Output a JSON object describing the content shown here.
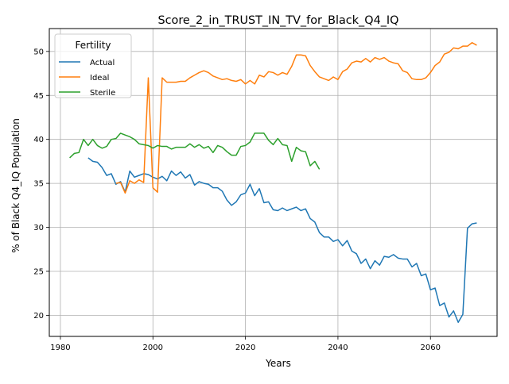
{
  "chart_data": {
    "type": "line",
    "title": "Score_2_in_TRUST_IN_TV_for_Black_Q4_IQ",
    "xlabel": "Years",
    "ylabel": "% of Black Q4_IQ Population",
    "xlim": [
      1977.6,
      2074.4
    ],
    "ylim": [
      17.6,
      52.6
    ],
    "xticks": [
      1980,
      2000,
      2020,
      2040,
      2060
    ],
    "yticks": [
      20,
      25,
      30,
      35,
      40,
      45,
      50
    ],
    "grid": true,
    "legend": {
      "title": "Fertility",
      "position": "upper-left"
    },
    "series": [
      {
        "name": "Actual",
        "color": "#1f77b4",
        "points": [
          [
            1986,
            37.9
          ],
          [
            1987,
            37.5
          ],
          [
            1988,
            37.4
          ],
          [
            1989,
            36.8
          ],
          [
            1990,
            35.9
          ],
          [
            1991,
            36.1
          ],
          [
            1992,
            34.9
          ],
          [
            1993,
            35.2
          ],
          [
            1994,
            34.0
          ],
          [
            1995,
            36.4
          ],
          [
            1996,
            35.7
          ],
          [
            1997,
            35.9
          ],
          [
            1998,
            36.1
          ],
          [
            1999,
            36.0
          ],
          [
            2000,
            35.7
          ],
          [
            2001,
            35.5
          ],
          [
            2002,
            35.8
          ],
          [
            2003,
            35.3
          ],
          [
            2004,
            36.4
          ],
          [
            2005,
            35.9
          ],
          [
            2006,
            36.3
          ],
          [
            2007,
            35.6
          ],
          [
            2008,
            36.0
          ],
          [
            2009,
            34.8
          ],
          [
            2010,
            35.2
          ],
          [
            2011,
            35.0
          ],
          [
            2012,
            34.9
          ],
          [
            2013,
            34.5
          ],
          [
            2014,
            34.5
          ],
          [
            2015,
            34.1
          ],
          [
            2016,
            33.1
          ],
          [
            2017,
            32.5
          ],
          [
            2018,
            32.9
          ],
          [
            2019,
            33.7
          ],
          [
            2020,
            33.9
          ],
          [
            2021,
            34.9
          ],
          [
            2022,
            33.6
          ],
          [
            2023,
            34.4
          ],
          [
            2024,
            32.8
          ],
          [
            2025,
            32.9
          ],
          [
            2026,
            32.0
          ],
          [
            2027,
            31.9
          ],
          [
            2028,
            32.2
          ],
          [
            2029,
            31.9
          ],
          [
            2030,
            32.1
          ],
          [
            2031,
            32.3
          ],
          [
            2032,
            31.9
          ],
          [
            2033,
            32.1
          ],
          [
            2034,
            31.0
          ],
          [
            2035,
            30.6
          ],
          [
            2036,
            29.4
          ],
          [
            2037,
            28.9
          ],
          [
            2038,
            28.9
          ],
          [
            2039,
            28.4
          ],
          [
            2040,
            28.6
          ],
          [
            2041,
            27.9
          ],
          [
            2042,
            28.5
          ],
          [
            2043,
            27.3
          ],
          [
            2044,
            27.0
          ],
          [
            2045,
            25.9
          ],
          [
            2046,
            26.4
          ],
          [
            2047,
            25.3
          ],
          [
            2048,
            26.2
          ],
          [
            2049,
            25.7
          ],
          [
            2050,
            26.7
          ],
          [
            2051,
            26.6
          ],
          [
            2052,
            26.9
          ],
          [
            2053,
            26.5
          ],
          [
            2054,
            26.4
          ],
          [
            2055,
            26.4
          ],
          [
            2056,
            25.5
          ],
          [
            2057,
            25.9
          ],
          [
            2058,
            24.5
          ],
          [
            2059,
            24.7
          ],
          [
            2060,
            22.9
          ],
          [
            2061,
            23.1
          ],
          [
            2062,
            21.1
          ],
          [
            2063,
            21.4
          ],
          [
            2064,
            19.8
          ],
          [
            2065,
            20.5
          ],
          [
            2066,
            19.2
          ],
          [
            2067,
            20.1
          ],
          [
            2068,
            29.9
          ],
          [
            2069,
            30.4
          ],
          [
            2070,
            30.5
          ]
        ]
      },
      {
        "name": "Ideal",
        "color": "#ff7f0e",
        "points": [
          [
            1992,
            35.0
          ],
          [
            1993,
            35.1
          ],
          [
            1994,
            33.9
          ],
          [
            1995,
            35.3
          ],
          [
            1996,
            35.0
          ],
          [
            1997,
            35.4
          ],
          [
            1998,
            35.1
          ],
          [
            1999,
            47.0
          ],
          [
            2000,
            34.5
          ],
          [
            2001,
            34.0
          ],
          [
            2002,
            47.0
          ],
          [
            2003,
            46.5
          ],
          [
            2004,
            46.5
          ],
          [
            2005,
            46.5
          ],
          [
            2006,
            46.6
          ],
          [
            2007,
            46.6
          ],
          [
            2008,
            47.0
          ],
          [
            2009,
            47.3
          ],
          [
            2010,
            47.6
          ],
          [
            2011,
            47.8
          ],
          [
            2012,
            47.6
          ],
          [
            2013,
            47.2
          ],
          [
            2014,
            47.0
          ],
          [
            2015,
            46.8
          ],
          [
            2016,
            46.9
          ],
          [
            2017,
            46.7
          ],
          [
            2018,
            46.6
          ],
          [
            2019,
            46.8
          ],
          [
            2020,
            46.3
          ],
          [
            2021,
            46.7
          ],
          [
            2022,
            46.3
          ],
          [
            2023,
            47.3
          ],
          [
            2024,
            47.1
          ],
          [
            2025,
            47.7
          ],
          [
            2026,
            47.6
          ],
          [
            2027,
            47.3
          ],
          [
            2028,
            47.6
          ],
          [
            2029,
            47.4
          ],
          [
            2030,
            48.3
          ],
          [
            2031,
            49.6
          ],
          [
            2032,
            49.6
          ],
          [
            2033,
            49.5
          ],
          [
            2034,
            48.4
          ],
          [
            2035,
            47.7
          ],
          [
            2036,
            47.1
          ],
          [
            2037,
            46.9
          ],
          [
            2038,
            46.7
          ],
          [
            2039,
            47.1
          ],
          [
            2040,
            46.8
          ],
          [
            2041,
            47.7
          ],
          [
            2042,
            48.0
          ],
          [
            2043,
            48.7
          ],
          [
            2044,
            48.9
          ],
          [
            2045,
            48.8
          ],
          [
            2046,
            49.2
          ],
          [
            2047,
            48.8
          ],
          [
            2048,
            49.3
          ],
          [
            2049,
            49.1
          ],
          [
            2050,
            49.3
          ],
          [
            2051,
            48.9
          ],
          [
            2052,
            48.7
          ],
          [
            2053,
            48.6
          ],
          [
            2054,
            47.8
          ],
          [
            2055,
            47.6
          ],
          [
            2056,
            46.9
          ],
          [
            2057,
            46.8
          ],
          [
            2058,
            46.8
          ],
          [
            2059,
            47.0
          ],
          [
            2060,
            47.6
          ],
          [
            2061,
            48.4
          ],
          [
            2062,
            48.8
          ],
          [
            2063,
            49.7
          ],
          [
            2064,
            49.9
          ],
          [
            2065,
            50.4
          ],
          [
            2066,
            50.3
          ],
          [
            2067,
            50.6
          ],
          [
            2068,
            50.6
          ],
          [
            2069,
            51.0
          ],
          [
            2070,
            50.7
          ]
        ]
      },
      {
        "name": "Sterile",
        "color": "#2ca02c",
        "points": [
          [
            1982,
            37.9
          ],
          [
            1983,
            38.4
          ],
          [
            1984,
            38.5
          ],
          [
            1985,
            40.0
          ],
          [
            1986,
            39.3
          ],
          [
            1987,
            40.0
          ],
          [
            1988,
            39.3
          ],
          [
            1989,
            39.0
          ],
          [
            1990,
            39.2
          ],
          [
            1991,
            40.0
          ],
          [
            1992,
            40.1
          ],
          [
            1993,
            40.7
          ],
          [
            1994,
            40.5
          ],
          [
            1995,
            40.3
          ],
          [
            1996,
            40.0
          ],
          [
            1997,
            39.5
          ],
          [
            1998,
            39.4
          ],
          [
            1999,
            39.3
          ],
          [
            2000,
            39.0
          ],
          [
            2001,
            39.3
          ],
          [
            2002,
            39.2
          ],
          [
            2003,
            39.2
          ],
          [
            2004,
            38.9
          ],
          [
            2005,
            39.1
          ],
          [
            2006,
            39.1
          ],
          [
            2007,
            39.1
          ],
          [
            2008,
            39.5
          ],
          [
            2009,
            39.1
          ],
          [
            2010,
            39.4
          ],
          [
            2011,
            39.0
          ],
          [
            2012,
            39.2
          ],
          [
            2013,
            38.5
          ],
          [
            2014,
            39.3
          ],
          [
            2015,
            39.1
          ],
          [
            2016,
            38.6
          ],
          [
            2017,
            38.2
          ],
          [
            2018,
            38.2
          ],
          [
            2019,
            39.2
          ],
          [
            2020,
            39.3
          ],
          [
            2021,
            39.7
          ],
          [
            2022,
            40.7
          ],
          [
            2023,
            40.7
          ],
          [
            2024,
            40.7
          ],
          [
            2025,
            39.9
          ],
          [
            2026,
            39.4
          ],
          [
            2027,
            40.1
          ],
          [
            2028,
            39.4
          ],
          [
            2029,
            39.3
          ],
          [
            2030,
            37.5
          ],
          [
            2031,
            39.1
          ],
          [
            2032,
            38.7
          ],
          [
            2033,
            38.6
          ],
          [
            2034,
            37.0
          ],
          [
            2035,
            37.5
          ],
          [
            2036,
            36.6
          ]
        ]
      }
    ]
  }
}
